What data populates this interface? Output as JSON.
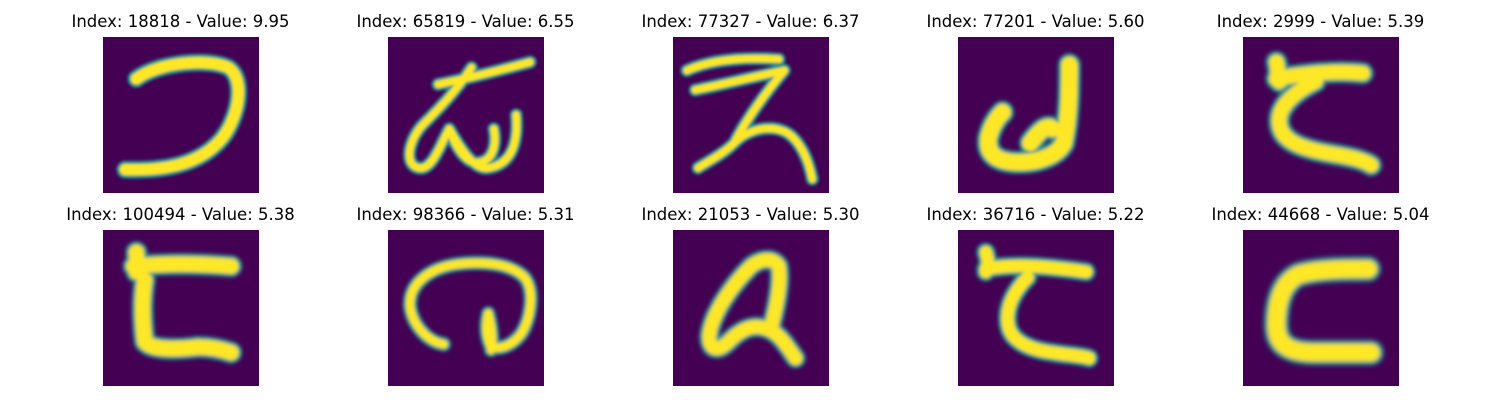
{
  "figure": {
    "background": "#ffffff",
    "colormap": {
      "name": "viridis",
      "low": "#440154",
      "mid": "#21918c",
      "high": "#fde725"
    },
    "panels": [
      {
        "title": "Index: 18818 - Value: 9.95",
        "index": 18818,
        "value": 9.95
      },
      {
        "title": "Index: 65819 - Value: 6.55",
        "index": 65819,
        "value": 6.55
      },
      {
        "title": "Index: 77327 - Value: 6.37",
        "index": 77327,
        "value": 6.37
      },
      {
        "title": "Index: 77201 - Value: 5.60",
        "index": 77201,
        "value": 5.6
      },
      {
        "title": "Index: 2999 - Value: 5.39",
        "index": 2999,
        "value": 5.39
      },
      {
        "title": "Index: 100494 - Value: 5.38",
        "index": 100494,
        "value": 5.38
      },
      {
        "title": "Index: 98366 - Value: 5.31",
        "index": 98366,
        "value": 5.31
      },
      {
        "title": "Index: 21053 - Value: 5.30",
        "index": 21053,
        "value": 5.3
      },
      {
        "title": "Index: 36716 - Value: 5.22",
        "index": 36716,
        "value": 5.22
      },
      {
        "title": "Index: 44668 - Value: 5.04",
        "index": 44668,
        "value": 5.04
      }
    ]
  }
}
